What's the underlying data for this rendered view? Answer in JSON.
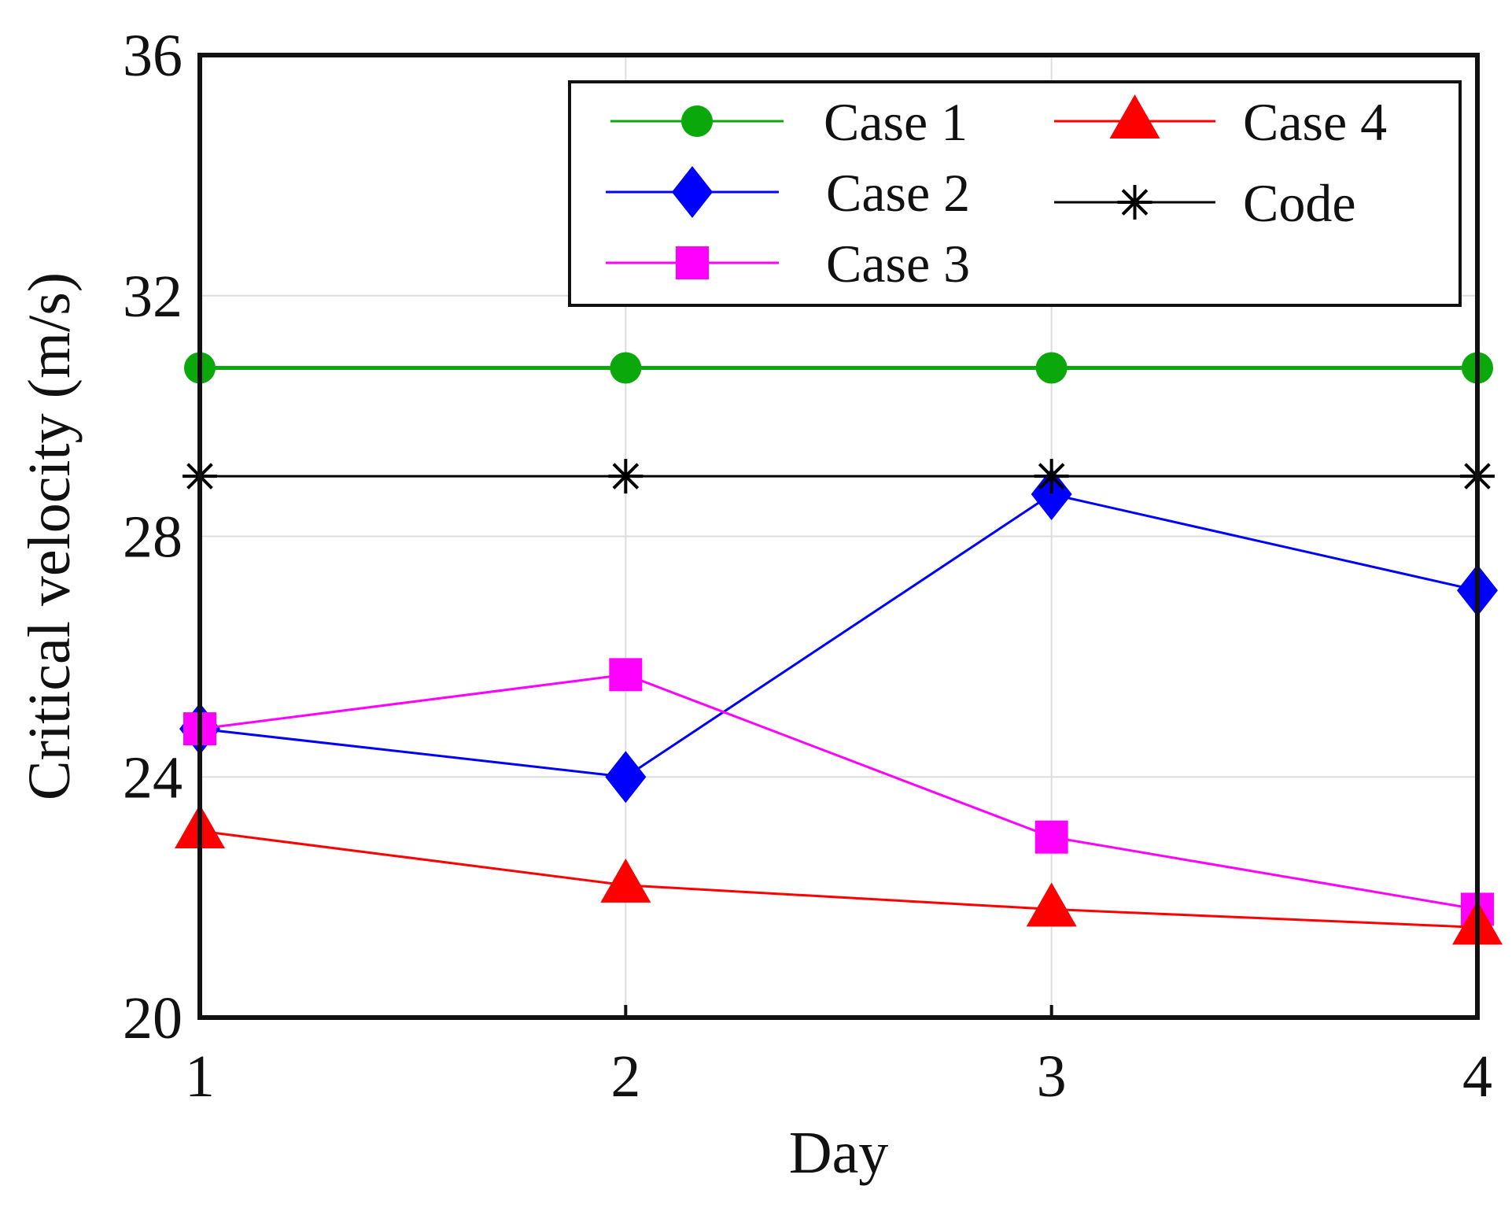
{
  "chart_data": {
    "type": "line",
    "title": "",
    "xlabel": "Day",
    "ylabel": "Critical velocity (m/s)",
    "x": [
      1,
      2,
      3,
      4
    ],
    "xlim": [
      1,
      4
    ],
    "ylim": [
      20,
      36
    ],
    "x_ticks": [
      "1",
      "2",
      "3",
      "4"
    ],
    "y_ticks": [
      "20",
      "24",
      "28",
      "32",
      "36"
    ],
    "grid": true,
    "legend_position": "top-right",
    "series": [
      {
        "name": "Case 1",
        "marker": "circle",
        "color": "#0aa80a",
        "values": [
          30.8,
          30.8,
          30.8,
          30.8
        ]
      },
      {
        "name": "Case 2",
        "marker": "diamond",
        "color": "#0000ff",
        "values": [
          24.8,
          24.0,
          28.7,
          27.1
        ]
      },
      {
        "name": "Case 3",
        "marker": "square",
        "color": "#ff00ff",
        "values": [
          24.8,
          25.7,
          23.0,
          21.8
        ]
      },
      {
        "name": "Case 4",
        "marker": "triangle",
        "color": "#ff0000",
        "values": [
          23.1,
          22.2,
          21.8,
          21.5
        ]
      },
      {
        "name": "Code",
        "marker": "asterisk",
        "color": "#000000",
        "values": [
          29.0,
          29.0,
          29.0,
          29.0
        ]
      }
    ]
  }
}
